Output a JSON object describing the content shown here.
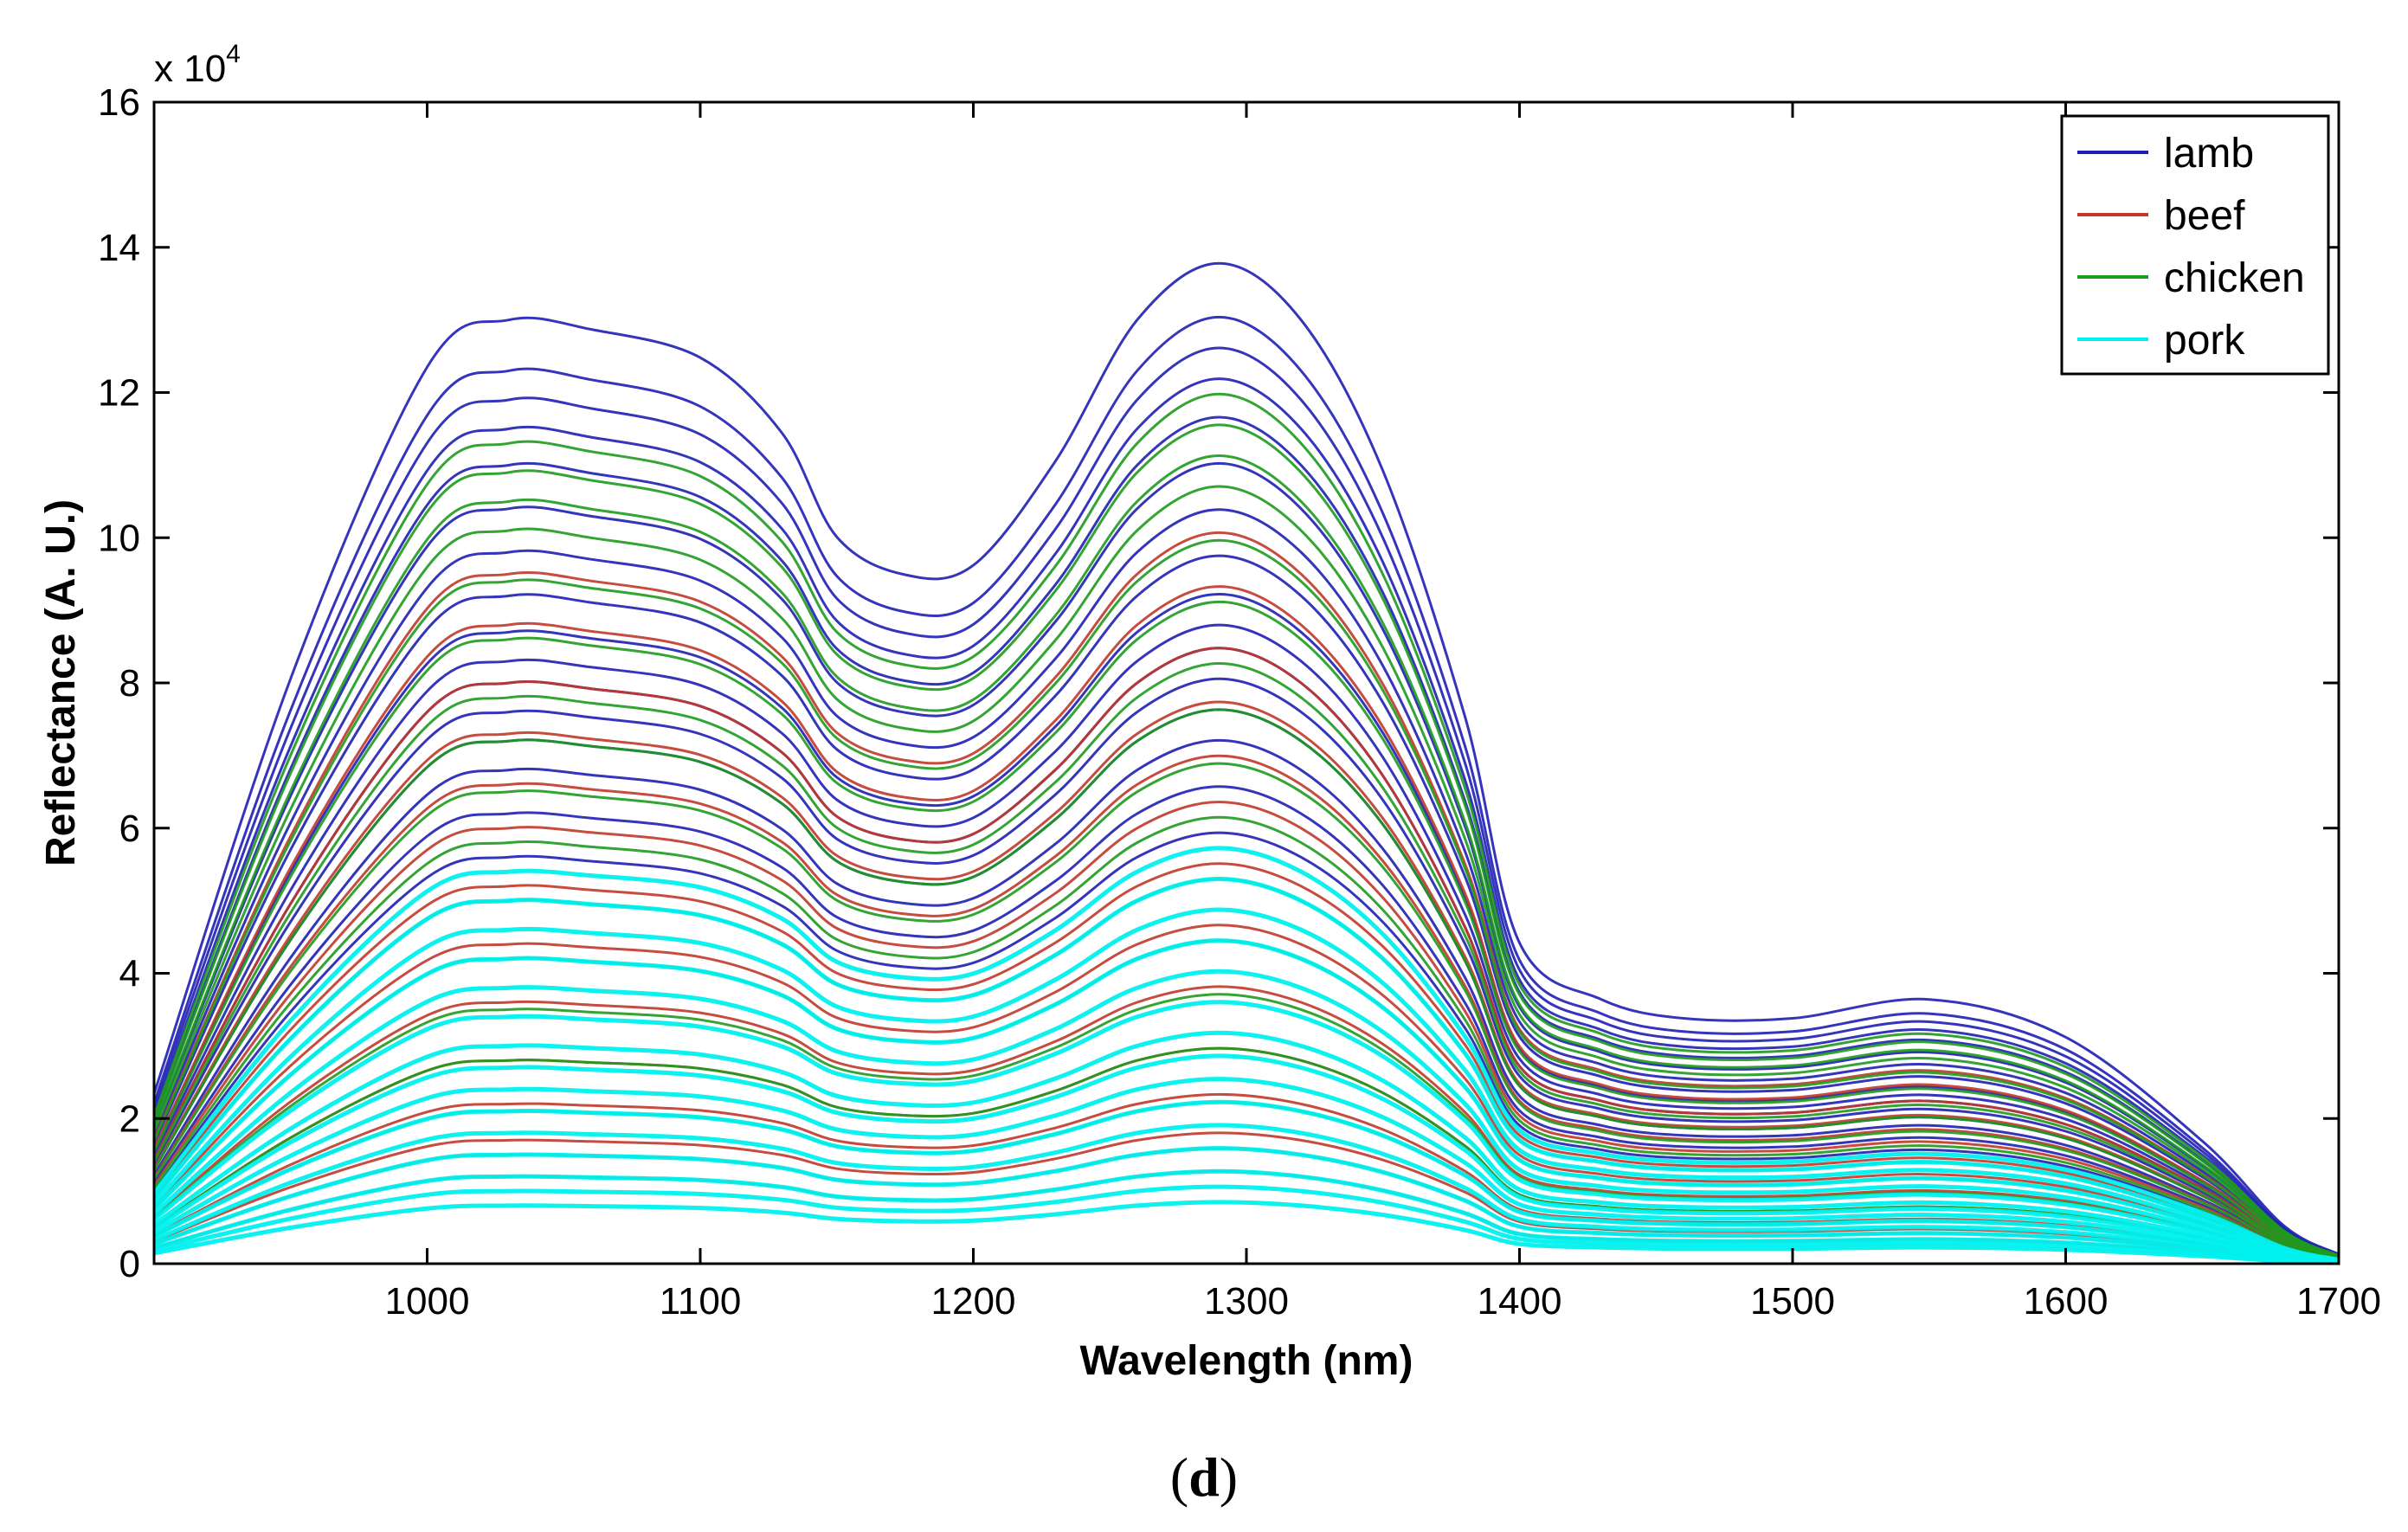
{
  "figure": {
    "panel_label_open": "(",
    "panel_label_letter": "d",
    "panel_label_close": ")"
  },
  "chart_data": {
    "type": "line",
    "title": "",
    "xlabel": "Wavelength (nm)",
    "ylabel": "Reflectance (A. U.)",
    "y_multiplier_prefix": "x 10",
    "y_multiplier_exponent": "4",
    "xlim": [
      900,
      1700
    ],
    "ylim": [
      0,
      16
    ],
    "xticks": [
      1000,
      1100,
      1200,
      1300,
      1400,
      1500,
      1600,
      1700
    ],
    "yticks": [
      0,
      2,
      4,
      6,
      8,
      10,
      12,
      14,
      16
    ],
    "grid": false,
    "legend_position": "top-right",
    "x": [
      900,
      950,
      1000,
      1030,
      1060,
      1100,
      1130,
      1150,
      1175,
      1200,
      1230,
      1260,
      1290,
      1320,
      1350,
      1380,
      1400,
      1430,
      1460,
      1500,
      1550,
      1600,
      1650,
      1680,
      1700
    ],
    "base_shape": [
      0.18,
      0.62,
      0.95,
      1.0,
      0.99,
      0.96,
      0.88,
      0.77,
      0.73,
      0.74,
      0.85,
      1.0,
      1.06,
      1.0,
      0.84,
      0.58,
      0.34,
      0.28,
      0.26,
      0.26,
      0.28,
      0.24,
      0.13,
      0.04,
      0.01
    ],
    "series": [
      {
        "name": "lamb",
        "color": "#1f1fb4",
        "peak_levels": [
          13.0,
          12.3,
          11.9,
          11.5,
          11.0,
          10.4,
          9.8,
          9.2,
          8.7,
          8.3,
          8.0,
          7.6,
          7.2,
          6.8,
          6.2,
          5.6
        ]
      },
      {
        "name": "beef",
        "color": "#c0392b",
        "peak_levels": [
          9.5,
          8.8,
          8.0,
          7.3,
          6.6,
          6.0,
          5.2,
          4.4,
          3.6,
          2.8,
          2.2,
          1.7,
          1.5,
          1.2
        ]
      },
      {
        "name": "chicken",
        "color": "#1e9a1e",
        "peak_levels": [
          11.3,
          10.9,
          10.5,
          10.1,
          9.4,
          8.6,
          7.8,
          7.2,
          6.5,
          5.8,
          5.0,
          4.2,
          3.5,
          2.8,
          2.1
        ]
      },
      {
        "name": "pork",
        "color": "#00f0ee",
        "peak_levels": [
          5.4,
          5.0,
          4.6,
          4.2,
          3.8,
          3.4,
          3.0,
          2.7,
          2.4,
          2.1,
          1.8,
          1.5,
          1.2,
          1.0,
          0.8
        ]
      }
    ]
  }
}
